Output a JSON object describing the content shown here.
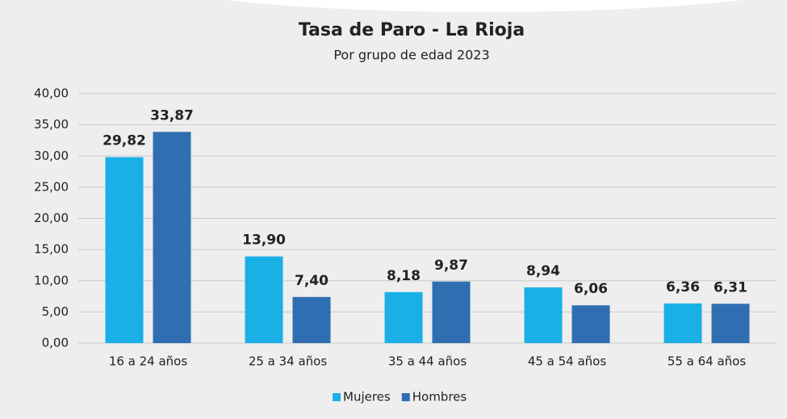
{
  "chart_data": {
    "type": "bar",
    "title": "Tasa de Paro - La Rioja",
    "subtitle": "Por grupo de edad 2023",
    "categories": [
      "16 a 24 años",
      "25 a 34 años",
      "35 a 44 años",
      "45 a 54 años",
      "55 a 64 años"
    ],
    "series": [
      {
        "name": "Mujeres",
        "color": "#1ab0e6",
        "values": [
          29.82,
          13.9,
          8.18,
          8.94,
          6.36
        ],
        "value_labels": [
          "29,82",
          "13,90",
          "8,18",
          "8,94",
          "6,36"
        ]
      },
      {
        "name": "Hombres",
        "color": "#2f6fb1",
        "values": [
          33.87,
          7.4,
          9.87,
          6.06,
          6.31
        ],
        "value_labels": [
          "33,87",
          "7,40",
          "9,87",
          "6,06",
          "6,31"
        ]
      }
    ],
    "ylim": [
      0,
      40
    ],
    "yticks": [
      {
        "value": 0,
        "label": "0,00"
      },
      {
        "value": 5,
        "label": "5,00"
      },
      {
        "value": 10,
        "label": "10,00"
      },
      {
        "value": 15,
        "label": "15,00"
      },
      {
        "value": 20,
        "label": "20,00"
      },
      {
        "value": 25,
        "label": "25,00"
      },
      {
        "value": 30,
        "label": "30,00"
      },
      {
        "value": 35,
        "label": "35,00"
      },
      {
        "value": 40,
        "label": "40,00"
      }
    ],
    "grid": true,
    "legend": "bottom"
  }
}
